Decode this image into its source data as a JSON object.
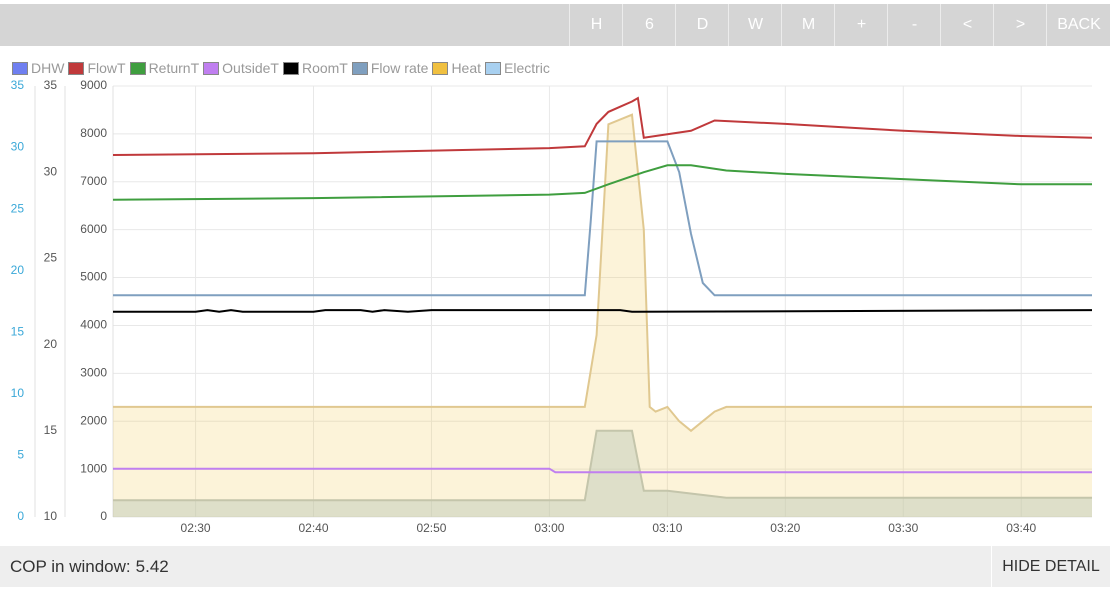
{
  "toolbar": {
    "buttons": [
      "H",
      "6",
      "D",
      "W",
      "M",
      "+",
      "-",
      "<",
      ">",
      "BACK"
    ]
  },
  "footer": {
    "cop_label": "COP in window:",
    "cop_value": "5.42",
    "hide_label": "HIDE DETAIL"
  },
  "chart_data": {
    "type": "line",
    "legend": [
      {
        "name": "DHW",
        "color": "#6f7ff0"
      },
      {
        "name": "FlowT",
        "color": "#c0393b"
      },
      {
        "name": "ReturnT",
        "color": "#3f9e3f"
      },
      {
        "name": "OutsideT",
        "color": "#c07ff0"
      },
      {
        "name": "RoomT",
        "color": "#000000"
      },
      {
        "name": "Flow rate",
        "color": "#7f9fbf"
      },
      {
        "name": "Heat",
        "color": "#f0c040"
      },
      {
        "name": "Electric",
        "color": "#a8d0f0"
      }
    ],
    "axes": {
      "power": {
        "ticks": [
          0,
          1000,
          2000,
          3000,
          4000,
          5000,
          6000,
          7000,
          8000,
          9000
        ],
        "range": [
          0,
          9000
        ]
      },
      "temp": {
        "ticks": [
          10,
          15,
          20,
          25,
          30,
          35
        ],
        "range": [
          10,
          35
        ]
      },
      "flow": {
        "ticks": [
          0,
          5,
          10,
          15,
          20,
          25,
          30,
          35
        ],
        "range": [
          0,
          35
        ],
        "color": "#3aa8d8"
      },
      "time_ticks": [
        "02:30",
        "02:40",
        "02:50",
        "03:00",
        "03:10",
        "03:20",
        "03:30",
        "03:40"
      ],
      "time_range": [
        "02:23",
        "03:46"
      ]
    },
    "grid": true,
    "series": [
      {
        "name": "FlowT",
        "axis": "temp",
        "color": "#c0393b",
        "x": [
          "02:23",
          "02:40",
          "03:00",
          "03:03",
          "03:04",
          "03:05",
          "03:06",
          "03:07",
          "03:07:30",
          "03:08",
          "03:10",
          "03:12",
          "03:14",
          "03:20",
          "03:30",
          "03:40",
          "03:46"
        ],
        "y": [
          31.0,
          31.1,
          31.4,
          31.5,
          32.8,
          33.5,
          33.8,
          34.1,
          34.3,
          32.0,
          32.2,
          32.4,
          33.0,
          32.8,
          32.4,
          32.1,
          32.0
        ]
      },
      {
        "name": "ReturnT",
        "axis": "temp",
        "color": "#3f9e3f",
        "x": [
          "02:23",
          "02:40",
          "03:00",
          "03:03",
          "03:05",
          "03:08",
          "03:10",
          "03:12",
          "03:15",
          "03:20",
          "03:30",
          "03:40",
          "03:46"
        ],
        "y": [
          28.4,
          28.5,
          28.7,
          28.8,
          29.3,
          30.0,
          30.4,
          30.4,
          30.1,
          29.9,
          29.6,
          29.3,
          29.3
        ]
      },
      {
        "name": "RoomT",
        "axis": "temp",
        "color": "#000000",
        "x": [
          "02:23",
          "02:30",
          "02:31",
          "02:32",
          "02:33",
          "02:34",
          "02:40",
          "02:41",
          "02:44",
          "02:45",
          "02:46",
          "02:48",
          "02:50",
          "02:55",
          "03:00",
          "03:06",
          "03:07",
          "03:46"
        ],
        "y": [
          21.9,
          21.9,
          22.0,
          21.9,
          22.0,
          21.9,
          21.9,
          22.0,
          22.0,
          21.9,
          22.0,
          21.9,
          22.0,
          22.0,
          22.0,
          22.0,
          21.9,
          22.0
        ]
      },
      {
        "name": "OutsideT",
        "axis": "temp",
        "color": "#c07ff0",
        "x": [
          "02:23",
          "03:00",
          "03:00:30",
          "03:46"
        ],
        "y": [
          12.8,
          12.8,
          12.6,
          12.6
        ]
      },
      {
        "name": "Flow rate",
        "axis": "flow",
        "color": "#7f9fbf",
        "x": [
          "02:23",
          "03:03",
          "03:03:30",
          "03:04",
          "03:10",
          "03:11",
          "03:12",
          "03:13",
          "03:14",
          "03:46"
        ],
        "y": [
          18.0,
          18.0,
          24.0,
          30.5,
          30.5,
          28.0,
          23.0,
          19.0,
          18.0,
          18.0
        ]
      },
      {
        "name": "Heat",
        "axis": "power",
        "color": "#f0c040",
        "x": [
          "02:23",
          "03:00",
          "03:03",
          "03:04",
          "03:05",
          "03:07",
          "03:08",
          "03:08:30",
          "03:09",
          "03:10",
          "03:11",
          "03:12",
          "03:13",
          "03:14",
          "03:15",
          "03:20",
          "03:30",
          "03:40",
          "03:46"
        ],
        "y": [
          2300,
          2300,
          2300,
          3800,
          8200,
          8400,
          6000,
          2300,
          2200,
          2300,
          2000,
          1800,
          2000,
          2200,
          2300,
          2300,
          2300,
          2300,
          2300
        ]
      },
      {
        "name": "Electric",
        "axis": "power",
        "color": "#a8d0f0",
        "x": [
          "02:23",
          "03:03",
          "03:04",
          "03:07",
          "03:08",
          "03:10",
          "03:15",
          "03:20",
          "03:46"
        ],
        "y": [
          350,
          350,
          1800,
          1800,
          550,
          550,
          400,
          400,
          400
        ]
      }
    ]
  }
}
